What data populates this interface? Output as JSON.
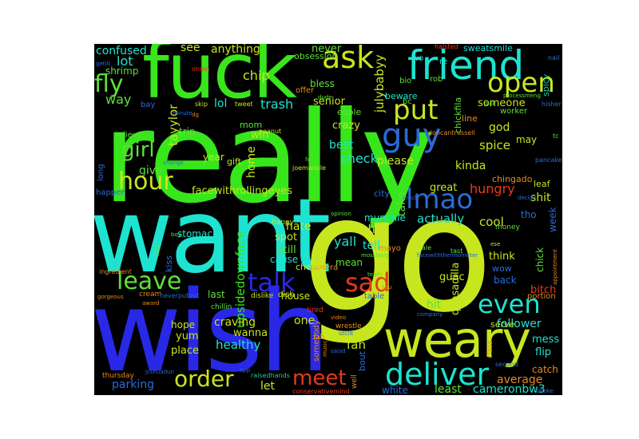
{
  "word_cloud": {
    "background": "#000000",
    "palette": {
      "green": "#38e61c",
      "cyan": "#1de3d0",
      "yellow": "#c8e61e",
      "blue": "#2828e6",
      "midblue": "#2a6bd8",
      "lightgreen": "#5fe038",
      "red": "#e63a1c",
      "orange": "#e68a1e",
      "teal": "#1cc7a8"
    },
    "words": [
      {
        "text": "really",
        "color": "#38e61c"
      },
      {
        "text": "want",
        "color": "#1de3d0"
      },
      {
        "text": "go",
        "color": "#c8e61e"
      },
      {
        "text": "wish",
        "color": "#2828e6"
      },
      {
        "text": "fuck",
        "color": "#38e61c"
      },
      {
        "text": "weary",
        "color": "#c8e61e"
      },
      {
        "text": "friend",
        "color": "#1de3d0"
      },
      {
        "text": "deliver",
        "color": "#1de3d0"
      },
      {
        "text": "guy",
        "color": "#2a6bd8"
      },
      {
        "text": "lmao",
        "color": "#2a6bd8"
      },
      {
        "text": "open",
        "color": "#c8e61e"
      },
      {
        "text": "ask",
        "color": "#c8e61e"
      },
      {
        "text": "put",
        "color": "#c8e61e"
      },
      {
        "text": "hour",
        "color": "#c8e61e"
      },
      {
        "text": "leave",
        "color": "#5fe038"
      },
      {
        "text": "talk",
        "color": "#2828e6"
      },
      {
        "text": "sad",
        "color": "#e63a1c"
      },
      {
        "text": "even",
        "color": "#1de3d0"
      },
      {
        "text": "order",
        "color": "#c8e61e"
      },
      {
        "text": "meet",
        "color": "#e63a1c"
      },
      {
        "text": "fly",
        "color": "#5fe038"
      },
      {
        "text": "girl",
        "color": "#5fe038"
      },
      {
        "text": "facewithrollingeyes",
        "color": "#c8e61e"
      },
      {
        "text": "upsidedownface",
        "color": "#38e61c"
      },
      {
        "text": "tayylor",
        "color": "#c8e61e"
      },
      {
        "text": "julybabyy",
        "color": "#c8e61e"
      },
      {
        "text": "confused",
        "color": "#1de3d0"
      },
      {
        "text": "shrimp",
        "color": "#5fe038"
      },
      {
        "text": "lot",
        "color": "#1de3d0"
      },
      {
        "text": "way",
        "color": "#5fe038"
      },
      {
        "text": "see",
        "color": "#c8e61e"
      },
      {
        "text": "anything",
        "color": "#c8e61e"
      },
      {
        "text": "chip",
        "color": "#c8e61e"
      },
      {
        "text": "lol",
        "color": "#1de3d0"
      },
      {
        "text": "trash",
        "color": "#1de3d0"
      },
      {
        "text": "never",
        "color": "#5fe038"
      },
      {
        "text": "obsession",
        "color": "#5fe038"
      },
      {
        "text": "bless",
        "color": "#5fe038"
      },
      {
        "text": "senior",
        "color": "#c8e61e"
      },
      {
        "text": "crazy",
        "color": "#c8e61e"
      },
      {
        "text": "eople",
        "color": "#5fe038"
      },
      {
        "text": "best",
        "color": "#1de3d0"
      },
      {
        "text": "check",
        "color": "#1de3d0"
      },
      {
        "text": "please",
        "color": "#c8e61e"
      },
      {
        "text": "someone",
        "color": "#c8e61e"
      },
      {
        "text": "god",
        "color": "#c8e61e"
      },
      {
        "text": "spice",
        "color": "#c8e61e"
      },
      {
        "text": "kinda",
        "color": "#c8e61e"
      },
      {
        "text": "hungry",
        "color": "#e63a1c"
      },
      {
        "text": "great",
        "color": "#c8e61e"
      },
      {
        "text": "take",
        "color": "#5fe038"
      },
      {
        "text": "city",
        "color": "#2a6bd8"
      },
      {
        "text": "give",
        "color": "#5fe038"
      },
      {
        "text": "year",
        "color": "#c8e61e"
      },
      {
        "text": "win",
        "color": "#c8e61e"
      },
      {
        "text": "home",
        "color": "#c8e61e"
      },
      {
        "text": "stomach",
        "color": "#1de3d0"
      },
      {
        "text": "spot",
        "color": "#c8e61e"
      },
      {
        "text": "hate",
        "color": "#c8e61e"
      },
      {
        "text": "oh",
        "color": "#c8e61e"
      },
      {
        "text": "yall",
        "color": "#1de3d0"
      },
      {
        "text": "still",
        "color": "#5fe038"
      },
      {
        "text": "cause",
        "color": "#1de3d0"
      },
      {
        "text": "mean",
        "color": "#5fe038"
      },
      {
        "text": "tell",
        "color": "#1de3d0"
      },
      {
        "text": "munchie",
        "color": "#1de3d0"
      },
      {
        "text": "actually",
        "color": "#1de3d0"
      },
      {
        "text": "cool",
        "color": "#c8e61e"
      },
      {
        "text": "tho",
        "color": "#2a6bd8"
      },
      {
        "text": "week",
        "color": "#2a6bd8"
      },
      {
        "text": "shit",
        "color": "#c8e61e"
      },
      {
        "text": "think",
        "color": "#c8e61e"
      },
      {
        "text": "quesadilla",
        "color": "#c8e61e"
      },
      {
        "text": "guac",
        "color": "#c8e61e"
      },
      {
        "text": "hit",
        "color": "#5fe038"
      },
      {
        "text": "one",
        "color": "#c8e61e"
      },
      {
        "text": "craving",
        "color": "#c8e61e"
      },
      {
        "text": "yum",
        "color": "#c8e61e"
      },
      {
        "text": "healthy",
        "color": "#1de3d0"
      },
      {
        "text": "wanna",
        "color": "#c8e61e"
      },
      {
        "text": "place",
        "color": "#c8e61e"
      },
      {
        "text": "fan",
        "color": "#c8e61e"
      },
      {
        "text": "follower",
        "color": "#1de3d0"
      },
      {
        "text": "serve",
        "color": "#c8e61e"
      },
      {
        "text": "parking",
        "color": "#2a6bd8"
      },
      {
        "text": "let",
        "color": "#c8e61e"
      },
      {
        "text": "white",
        "color": "#2a6bd8"
      },
      {
        "text": "least",
        "color": "#5fe038"
      },
      {
        "text": "cameronbw3",
        "color": "#1de3d0"
      },
      {
        "text": "average",
        "color": "#e68a1e"
      },
      {
        "text": "mess",
        "color": "#1de3d0"
      },
      {
        "text": "flip",
        "color": "#1de3d0"
      },
      {
        "text": "catch",
        "color": "#e68a1e"
      },
      {
        "text": "bitch",
        "color": "#e63a1c"
      },
      {
        "text": "back",
        "color": "#2a6bd8"
      },
      {
        "text": "wow",
        "color": "#2a6bd8"
      },
      {
        "text": "chick",
        "color": "#5fe038"
      },
      {
        "text": "leaf",
        "color": "#c8e61e"
      },
      {
        "text": "chingado",
        "color": "#e68a1e"
      },
      {
        "text": "may",
        "color": "#c8e61e"
      },
      {
        "text": "hope",
        "color": "#c8e61e"
      },
      {
        "text": "house",
        "color": "#c8e61e"
      },
      {
        "text": "last",
        "color": "#5fe038"
      },
      {
        "text": "mom",
        "color": "#5fe038"
      },
      {
        "text": "trip",
        "color": "#5fe038"
      },
      {
        "text": "relieve",
        "color": "#5fe038"
      },
      {
        "text": "gift",
        "color": "#c8e61e"
      },
      {
        "text": "kiss",
        "color": "#2a6bd8"
      },
      {
        "text": "happen",
        "color": "#2a6bd8"
      },
      {
        "text": "long",
        "color": "#2a6bd8"
      },
      {
        "text": "beware",
        "color": "#1de3d0"
      },
      {
        "text": "bay",
        "color": "#2a6bd8"
      },
      {
        "text": "worker",
        "color": "#5fe038"
      },
      {
        "text": "line",
        "color": "#e68a1e"
      },
      {
        "text": "chickfila",
        "color": "#5fe038"
      },
      {
        "text": "spicy",
        "color": "#1cc7a8"
      },
      {
        "text": "sweatsmile",
        "color": "#1de3d0"
      },
      {
        "text": "rob",
        "color": "#5fe038"
      },
      {
        "text": "bc",
        "color": "#5fe038"
      },
      {
        "text": "wo",
        "color": "#1de3d0"
      },
      {
        "text": "re",
        "color": "#1de3d0"
      },
      {
        "text": "bio",
        "color": "#5fe038"
      },
      {
        "text": "offer",
        "color": "#e68a1e"
      },
      {
        "text": "skip",
        "color": "#c8e61e"
      },
      {
        "text": "tweet",
        "color": "#c8e61e"
      },
      {
        "text": "peanut",
        "color": "#c8e61e"
      },
      {
        "text": "joemanule",
        "color": "#c8e61e"
      },
      {
        "text": "ingredient",
        "color": "#e68a1e"
      },
      {
        "text": "cream",
        "color": "#e68a1e"
      },
      {
        "text": "neverputout",
        "color": "#2a6bd8"
      },
      {
        "text": "dislike",
        "color": "#c8e61e"
      },
      {
        "text": "dish",
        "color": "#c8e61e"
      },
      {
        "text": "panera",
        "color": "#e68a1e"
      },
      {
        "text": "table",
        "color": "#2a6bd8"
      },
      {
        "text": "portion",
        "color": "#e68a1e"
      },
      {
        "text": "tired",
        "color": "#e63a1c"
      },
      {
        "text": "thursday",
        "color": "#e68a1e"
      },
      {
        "text": "second",
        "color": "#2a6bd8"
      },
      {
        "text": "class",
        "color": "#e68a1e"
      },
      {
        "text": "chillin",
        "color": "#5fe038"
      },
      {
        "text": "cheek",
        "color": "#c8e61e"
      },
      {
        "text": "mayo",
        "color": "#e68a1e"
      },
      {
        "text": "doncantrussell",
        "color": "#e68a1e"
      },
      {
        "text": "somebody",
        "color": "#e68a1e"
      },
      {
        "text": "wrestle",
        "color": "#e68a1e"
      },
      {
        "text": "bout",
        "color": "#2a6bd8"
      },
      {
        "text": "raisedhands",
        "color": "#1cc7a8"
      },
      {
        "text": "conservativemind",
        "color": "#e63a1c"
      },
      {
        "text": "halsted",
        "color": "#e63a1c"
      },
      {
        "text": "onion",
        "color": "#e63a1c"
      },
      {
        "text": "nail",
        "color": "#2a6bd8"
      },
      {
        "text": "hisher",
        "color": "#2a6bd8"
      },
      {
        "text": "pancake",
        "color": "#2a6bd8"
      },
      {
        "text": "money",
        "color": "#5fe038"
      },
      {
        "text": "happy",
        "color": "#c8e61e"
      },
      {
        "text": "opinion",
        "color": "#5fe038"
      },
      {
        "text": "team",
        "color": "#5fe038"
      },
      {
        "text": "video",
        "color": "#e68a1e"
      },
      {
        "text": "gorgeous",
        "color": "#e68a1e"
      },
      {
        "text": "award",
        "color": "#e68a1e"
      },
      {
        "text": "salad",
        "color": "#2a6bd8"
      },
      {
        "text": "mossberg",
        "color": "#5fe038"
      },
      {
        "text": "ale",
        "color": "#5fe038"
      },
      {
        "text": "tast",
        "color": "#5fe038"
      },
      {
        "text": "fab",
        "color": "#e68a1e"
      },
      {
        "text": "company",
        "color": "#2a6bd8"
      },
      {
        "text": "music",
        "color": "#e68a1e"
      },
      {
        "text": "tc",
        "color": "#5fe038"
      },
      {
        "text": "app",
        "color": "#2a6bd8"
      },
      {
        "text": "smoke",
        "color": "#2a6bd8"
      },
      {
        "text": "full",
        "color": "#5fe038"
      },
      {
        "text": "dude",
        "color": "#5fe038"
      },
      {
        "text": "pick",
        "color": "#5fe038"
      },
      {
        "text": "change",
        "color": "#2a6bd8"
      },
      {
        "text": "boy",
        "color": "#5fe038"
      },
      {
        "text": "hurt",
        "color": "#5fe038"
      },
      {
        "text": "minute",
        "color": "#2a6bd8"
      },
      {
        "text": "dg",
        "color": "#e68a1e"
      },
      {
        "text": "ese",
        "color": "#c8e61e"
      },
      {
        "text": "facewiththermometer",
        "color": "#2a6bd8"
      },
      {
        "text": "appointment",
        "color": "#e68a1e"
      },
      {
        "text": "jcshuadun",
        "color": "#2a6bd8"
      },
      {
        "text": "lzlclit",
        "color": "#2a6bd8"
      },
      {
        "text": "sou",
        "color": "#e68a1e"
      },
      {
        "text": "reach",
        "color": "#2a6bd8"
      },
      {
        "text": "decide",
        "color": "#2a6bd8"
      },
      {
        "text": "well",
        "color": "#e68a1e"
      },
      {
        "text": "processmeng",
        "color": "#5fe038"
      },
      {
        "text": "getlit",
        "color": "#2a6bd8"
      }
    ]
  }
}
